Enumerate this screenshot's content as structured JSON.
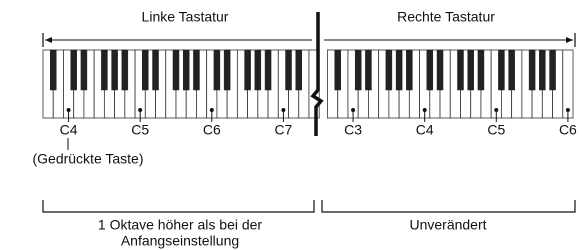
{
  "titles": {
    "left": "Linke Tastatur",
    "right": "Rechte Tastatur"
  },
  "left_keys": [
    "C4",
    "C5",
    "C6",
    "C7"
  ],
  "right_keys": [
    "C3",
    "C4",
    "C5",
    "C6"
  ],
  "pressed_key": "(Gedrückte Taste)",
  "left_note": [
    "1 Oktave höher als bei der",
    "Anfangseinstellung"
  ],
  "right_note": "Unverändert"
}
